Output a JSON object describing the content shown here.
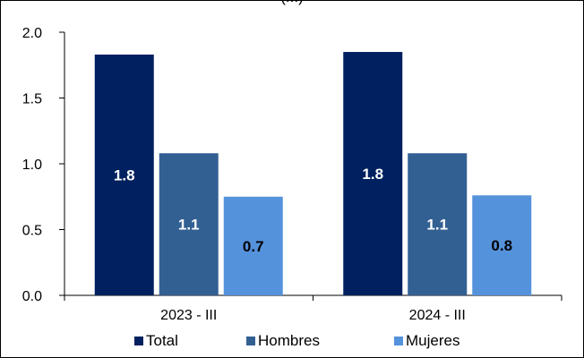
{
  "chart_data": {
    "type": "bar",
    "title": "(...)",
    "categories": [
      "2023 - III",
      "2024 - III"
    ],
    "series": [
      {
        "name": "Total",
        "values": [
          1.83,
          1.85
        ],
        "labels": [
          "1.8",
          "1.8"
        ],
        "color": "#002060",
        "label_color": "#ffffff"
      },
      {
        "name": "Hombres",
        "values": [
          1.08,
          1.08
        ],
        "labels": [
          "1.1",
          "1.1"
        ],
        "color": "#336093",
        "label_color": "#ffffff"
      },
      {
        "name": "Mujeres",
        "values": [
          0.75,
          0.76
        ],
        "labels": [
          "0.7",
          "0.8"
        ],
        "color": "#5592DC",
        "label_color": "#000000"
      }
    ],
    "yticks": [
      "0.0",
      "0.5",
      "1.0",
      "1.5",
      "2.0"
    ],
    "ylim": [
      0,
      2.0
    ],
    "grid": false,
    "legend": "bottom",
    "xlabel": "",
    "ylabel": ""
  }
}
